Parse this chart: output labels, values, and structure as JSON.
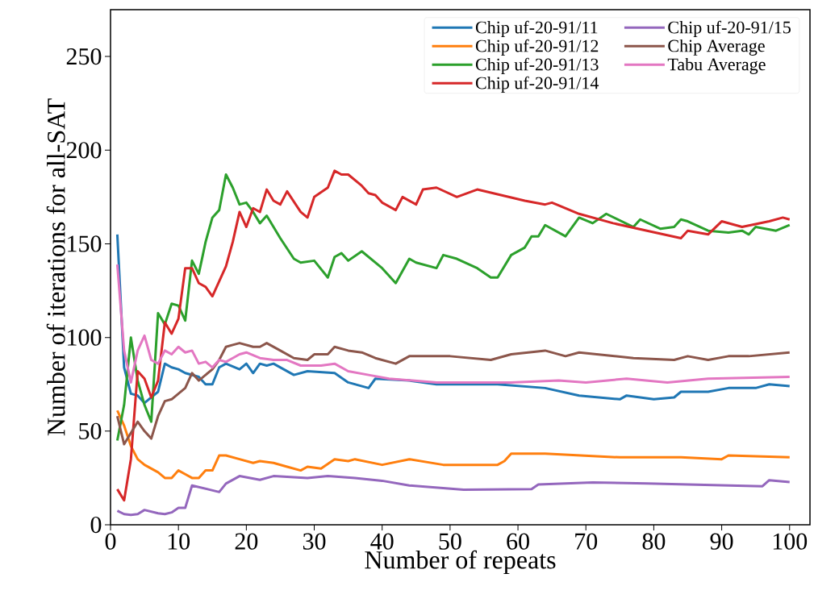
{
  "chart_data": {
    "type": "line",
    "xlabel": "Number of repeats",
    "ylabel": "Number of iterations for all-SAT",
    "xlim": [
      0,
      103
    ],
    "ylim": [
      0,
      275
    ],
    "xticks": [
      0,
      10,
      20,
      30,
      40,
      50,
      60,
      70,
      80,
      90,
      100
    ],
    "yticks": [
      0,
      50,
      100,
      150,
      200,
      250
    ],
    "legend": "top right",
    "series": [
      {
        "name": "Chip uf-20-91/11",
        "color": "#1f77b4",
        "x": [
          1,
          2,
          3,
          4,
          5,
          6,
          7,
          8,
          9,
          10,
          11,
          13,
          14,
          15,
          16,
          17,
          19,
          20,
          21,
          22,
          23,
          24,
          27,
          29,
          33,
          35,
          38,
          39,
          44,
          48,
          57,
          64,
          69,
          75,
          76,
          80,
          83,
          84,
          88,
          91,
          95,
          97,
          100
        ],
        "values": [
          155,
          84,
          70,
          69,
          65,
          68,
          71,
          86,
          84,
          83,
          81,
          79,
          75,
          75,
          84,
          86,
          83,
          86,
          81,
          86,
          85,
          86,
          80,
          82,
          81,
          76,
          73,
          78,
          77,
          75,
          75,
          73,
          69,
          67,
          69,
          67,
          68,
          71,
          71,
          73,
          73,
          75,
          74
        ]
      },
      {
        "name": "Chip uf-20-91/12",
        "color": "#ff7f0e",
        "x": [
          1,
          2,
          3,
          4,
          5,
          6,
          7,
          8,
          9,
          10,
          11,
          12,
          13,
          14,
          15,
          16,
          17,
          19,
          21,
          22,
          24,
          26,
          28,
          29,
          31,
          33,
          35,
          36,
          40,
          44,
          49,
          57,
          58,
          59,
          64,
          75,
          84,
          90,
          91,
          100
        ],
        "values": [
          61,
          53,
          42,
          35,
          32,
          30,
          28,
          25,
          25,
          29,
          27,
          25,
          25,
          29,
          29,
          37,
          37,
          35,
          33,
          34,
          33,
          31,
          29,
          31,
          30,
          35,
          34,
          35,
          32,
          35,
          32,
          32,
          34,
          38,
          38,
          36,
          36,
          35,
          37,
          36
        ]
      },
      {
        "name": "Chip uf-20-91/13",
        "color": "#2ca02c",
        "x": [
          1,
          2,
          3,
          4,
          5,
          6,
          7,
          8,
          9,
          10,
          11,
          12,
          13,
          14,
          15,
          16,
          17,
          18,
          19,
          20,
          21,
          22,
          23,
          25,
          27,
          28,
          30,
          32,
          33,
          34,
          35,
          37,
          40,
          42,
          44,
          45,
          48,
          49,
          51,
          54,
          56,
          57,
          59,
          61,
          62,
          63,
          64,
          67,
          69,
          71,
          73,
          77,
          78,
          81,
          83,
          84,
          85,
          88,
          91,
          93,
          94,
          95,
          98,
          100
        ],
        "values": [
          45,
          64,
          100,
          77,
          64,
          55,
          113,
          107,
          118,
          117,
          109,
          141,
          134,
          151,
          164,
          168,
          187,
          180,
          171,
          172,
          167,
          161,
          165,
          153,
          142,
          140,
          141,
          132,
          143,
          145,
          141,
          146,
          137,
          129,
          142,
          140,
          137,
          144,
          142,
          137,
          132,
          132,
          144,
          148,
          154,
          154,
          160,
          154,
          164,
          161,
          166,
          159,
          163,
          158,
          159,
          163,
          162,
          157,
          156,
          157,
          155,
          159,
          157,
          160
        ]
      },
      {
        "name": "Chip uf-20-91/14",
        "color": "#d62728",
        "x": [
          1,
          2,
          3,
          4,
          5,
          6,
          7,
          8,
          9,
          10,
          11,
          12,
          13,
          14,
          15,
          17,
          18,
          19,
          20,
          21,
          22,
          23,
          24,
          25,
          26,
          28,
          29,
          30,
          32,
          33,
          34,
          35,
          37,
          38,
          39,
          40,
          42,
          43,
          45,
          46,
          48,
          51,
          54,
          61,
          64,
          65,
          69,
          74,
          79,
          84,
          85,
          88,
          90,
          93,
          97,
          99,
          100
        ],
        "values": [
          19,
          13,
          35,
          82,
          78,
          68,
          77,
          108,
          102,
          110,
          137,
          137,
          129,
          127,
          122,
          138,
          151,
          167,
          159,
          169,
          167,
          179,
          173,
          171,
          178,
          167,
          164,
          175,
          180,
          189,
          187,
          187,
          181,
          177,
          176,
          172,
          168,
          175,
          171,
          179,
          180,
          175,
          179,
          173,
          171,
          172,
          166,
          161,
          157,
          153,
          157,
          155,
          162,
          159,
          162,
          164,
          163
        ]
      },
      {
        "name": "Chip uf-20-91/15",
        "color": "#9467bd",
        "x": [
          1,
          2,
          3,
          4,
          5,
          7,
          8,
          9,
          10,
          11,
          12,
          16,
          17,
          19,
          22,
          24,
          29,
          32,
          36,
          40,
          44,
          52,
          62,
          63,
          71,
          79,
          96,
          97,
          100
        ],
        "values": [
          7.5,
          5.7,
          5.3,
          5.7,
          7.9,
          6.1,
          5.7,
          6.6,
          9,
          9,
          21,
          17.5,
          22,
          26,
          24,
          26,
          25,
          26,
          25,
          23.5,
          21,
          18.7,
          19,
          21.5,
          22.6,
          22.1,
          20.6,
          23.8,
          22.8
        ]
      },
      {
        "name": "Chip Average",
        "color": "#8c564b",
        "x": [
          1,
          2,
          3,
          4,
          5,
          6,
          7,
          8,
          9,
          10,
          11,
          12,
          13,
          14,
          15,
          16,
          17,
          18,
          19,
          21,
          22,
          23,
          25,
          27,
          29,
          30,
          32,
          33,
          35,
          37,
          39,
          42,
          44,
          50,
          56,
          59,
          64,
          67,
          69,
          77,
          83,
          85,
          88,
          91,
          94,
          100
        ],
        "values": [
          58,
          43,
          49,
          55,
          50,
          46,
          58,
          66,
          67,
          70,
          73,
          81,
          77,
          80,
          83,
          88,
          95,
          96,
          97,
          95,
          95,
          97,
          93,
          89,
          88,
          91,
          91,
          95,
          93,
          92,
          89,
          86,
          90,
          90,
          88,
          91,
          93,
          90,
          92,
          89,
          88,
          90,
          88,
          90,
          90,
          92
        ]
      },
      {
        "name": "Tabu Average",
        "color": "#e377c2",
        "x": [
          1,
          2,
          3,
          4,
          5,
          6,
          7,
          8,
          9,
          10,
          11,
          12,
          13,
          14,
          15,
          16,
          17,
          18,
          19,
          20,
          22,
          24,
          26,
          28,
          31,
          33,
          35,
          38,
          41,
          48,
          59,
          66,
          70,
          76,
          82,
          88,
          100
        ],
        "values": [
          139,
          93,
          76,
          93,
          101,
          88,
          86,
          93,
          91,
          95,
          92,
          93,
          86,
          87,
          84,
          88,
          87,
          89,
          91,
          92,
          89,
          88,
          88,
          85,
          85,
          86,
          82,
          80,
          78,
          76,
          76,
          77,
          76,
          78,
          76,
          78,
          79
        ]
      }
    ]
  }
}
